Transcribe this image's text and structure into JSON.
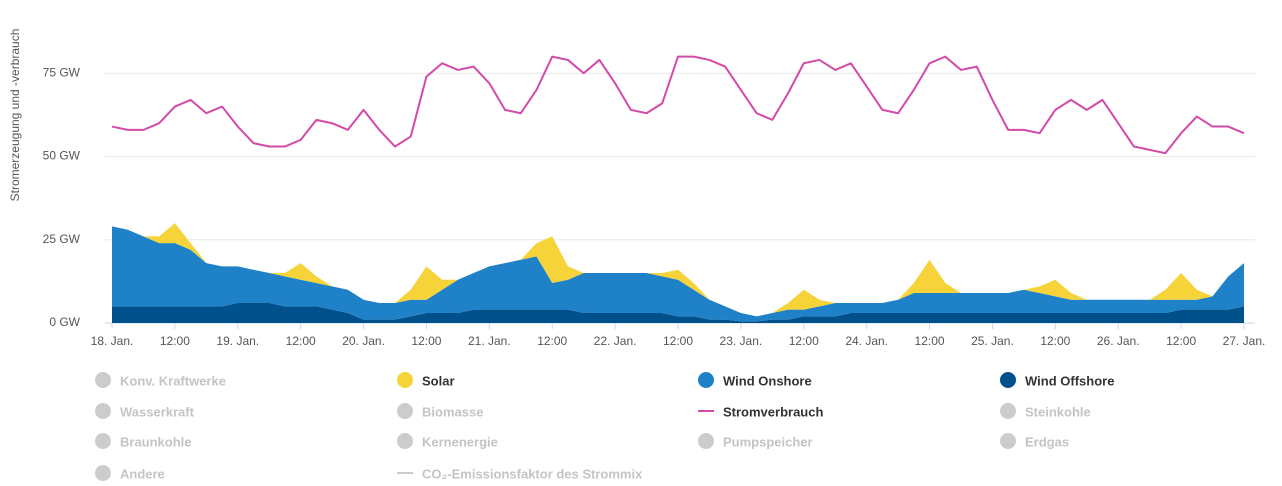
{
  "chart_data": {
    "type": "area",
    "stacked": true,
    "y_label": "Stromerzeugung und -verbrauch",
    "ylim": [
      0,
      94
    ],
    "yticks": [
      {
        "value": 0,
        "label": "0 GW"
      },
      {
        "value": 25,
        "label": "25 GW"
      },
      {
        "value": 50,
        "label": "50 GW"
      },
      {
        "value": 75,
        "label": "75 GW"
      }
    ],
    "grid": true,
    "categories": [
      "18. Jan.",
      null,
      null,
      null,
      "12:00",
      null,
      null,
      null,
      "19. Jan.",
      null,
      null,
      null,
      "12:00",
      null,
      null,
      null,
      "20. Jan.",
      null,
      null,
      null,
      "12:00",
      null,
      null,
      null,
      "21. Jan.",
      null,
      null,
      null,
      "12:00",
      null,
      null,
      null,
      "22. Jan.",
      null,
      null,
      null,
      "12:00",
      null,
      null,
      null,
      "23. Jan.",
      null,
      null,
      null,
      "12:00",
      null,
      null,
      null,
      "24. Jan.",
      null,
      null,
      null,
      "12:00",
      null,
      null,
      null,
      "25. Jan.",
      null,
      null,
      null,
      "12:00",
      null,
      null,
      null,
      "26. Jan.",
      null,
      null,
      null,
      "12:00",
      null,
      null,
      null,
      "27. Jan."
    ],
    "series": [
      {
        "name": "Wind Offshore",
        "color": "#00508c",
        "type": "area",
        "values": [
          5,
          5,
          5,
          5,
          5,
          5,
          5,
          5,
          6,
          6,
          6,
          5,
          5,
          5,
          4,
          3,
          1,
          1,
          1,
          2,
          3,
          3,
          3,
          4,
          4,
          4,
          4,
          4,
          4,
          4,
          3,
          3,
          3,
          3,
          3,
          3,
          2,
          2,
          1,
          1,
          0.5,
          0.5,
          1,
          1,
          2,
          2,
          2,
          3,
          3,
          3,
          3,
          3,
          3,
          3,
          3,
          3,
          3,
          3,
          3,
          3,
          3,
          3,
          3,
          3,
          3,
          3,
          3,
          3,
          4,
          4,
          4,
          4,
          5
        ]
      },
      {
        "name": "Wind Onshore",
        "color": "#1f82c8",
        "type": "area",
        "values": [
          24,
          23,
          21,
          19,
          19,
          17,
          13,
          12,
          11,
          10,
          9,
          9,
          8,
          7,
          7,
          7,
          6,
          5,
          5,
          5,
          4,
          7,
          10,
          11,
          13,
          14,
          15,
          16,
          8,
          9,
          12,
          12,
          12,
          12,
          12,
          11,
          11,
          8,
          6,
          4,
          2.5,
          1.5,
          2,
          3,
          2,
          3,
          4,
          3,
          3,
          3,
          4,
          6,
          6,
          6,
          6,
          6,
          6,
          6,
          7,
          6,
          5,
          4,
          4,
          4,
          4,
          4,
          4,
          4,
          3,
          3,
          4,
          10,
          13
        ]
      },
      {
        "name": "Solar",
        "color": "#f7d33a",
        "type": "area",
        "values": [
          0,
          0,
          0,
          2,
          6,
          2,
          0,
          0,
          0,
          0,
          0,
          1,
          5,
          2,
          0,
          0,
          0,
          0,
          0,
          3,
          10,
          3,
          0,
          0,
          0,
          0,
          0,
          4,
          14,
          4,
          0,
          0,
          0,
          0,
          0,
          1,
          3,
          2,
          0,
          0,
          0,
          0,
          0,
          2,
          6,
          2,
          0,
          0,
          0,
          0,
          0,
          3,
          10,
          3,
          0,
          0,
          0,
          0,
          0,
          2,
          5,
          2,
          0,
          0,
          0,
          0,
          0,
          3,
          8,
          3,
          0,
          0,
          0
        ]
      },
      {
        "name": "Stromverbrauch",
        "color": "#d34aa8",
        "type": "line",
        "values": [
          59,
          58,
          58,
          60,
          65,
          67,
          63,
          65,
          59,
          54,
          53,
          53,
          55,
          61,
          60,
          58,
          64,
          58,
          53,
          56,
          74,
          78,
          76,
          77,
          72,
          64,
          63,
          70,
          80,
          79,
          75,
          79,
          72,
          64,
          63,
          66,
          80,
          80,
          79,
          77,
          70,
          63,
          61,
          69,
          78,
          79,
          76,
          78,
          71,
          64,
          63,
          70,
          78,
          80,
          76,
          77,
          67,
          58,
          58,
          57,
          64,
          67,
          64,
          67,
          60,
          53,
          52,
          51,
          57,
          62,
          59,
          59,
          57
        ]
      }
    ],
    "inactive_series": [
      {
        "name": "Konv. Kraftwerke",
        "symbol": "circle"
      },
      {
        "name": "Wasserkraft",
        "symbol": "circle"
      },
      {
        "name": "Biomasse",
        "symbol": "circle"
      },
      {
        "name": "Steinkohle",
        "symbol": "circle"
      },
      {
        "name": "Braunkohle",
        "symbol": "circle"
      },
      {
        "name": "Kernenergie",
        "symbol": "circle"
      },
      {
        "name": "Pumpspeicher",
        "symbol": "circle"
      },
      {
        "name": "Erdgas",
        "symbol": "circle"
      },
      {
        "name": "Andere",
        "symbol": "circle"
      },
      {
        "name": "CO₂-Emissionsfaktor des Strommix",
        "symbol": "line"
      }
    ]
  }
}
